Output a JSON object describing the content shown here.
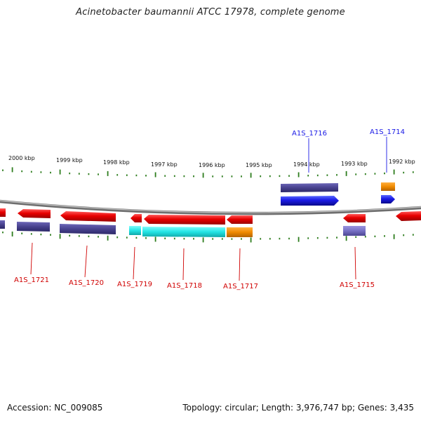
{
  "title": "Acinetobacter baumannii ATCC 17978, complete genome",
  "accession": "Accession: NC_009085",
  "topology": "Topology: circular; Length: 3,976,747 bp; Genes: 3,435",
  "ruler": {
    "labels": [
      "2000 kbp",
      "1999 kbp",
      "1998 kbp",
      "1997 kbp",
      "1996 kbp",
      "1995 kbp",
      "1994 kbp",
      "1993 kbp",
      "1992 kbp"
    ],
    "tick_color": "#2e7d1e"
  },
  "genes_top": [
    {
      "name": "A1S_1716",
      "color": "#1a1ae6",
      "label_color": "#1a1ae6"
    },
    {
      "name": "A1S_1714",
      "color": "#1a1ae6",
      "label_color": "#1a1ae6"
    }
  ],
  "genes_bottom": [
    {
      "name": "A1S_1721",
      "color": "#e00000",
      "label_color": "#d00000"
    },
    {
      "name": "A1S_1720",
      "color": "#e00000",
      "label_color": "#d00000"
    },
    {
      "name": "A1S_1719",
      "color": "#e00000",
      "label_color": "#d00000"
    },
    {
      "name": "A1S_1718",
      "color": "#e00000",
      "label_color": "#d00000"
    },
    {
      "name": "A1S_1717",
      "color": "#e00000",
      "label_color": "#d00000"
    },
    {
      "name": "A1S_1715",
      "color": "#e00000",
      "label_color": "#d00000"
    }
  ],
  "colors": {
    "cds_forward": "#1a1ae6",
    "cds_reverse": "#e00000",
    "feature_purple": "#4a4494",
    "feature_cyan": "#22e0e0",
    "feature_orange": "#f08a00",
    "backbone": "#8a8a8a"
  }
}
